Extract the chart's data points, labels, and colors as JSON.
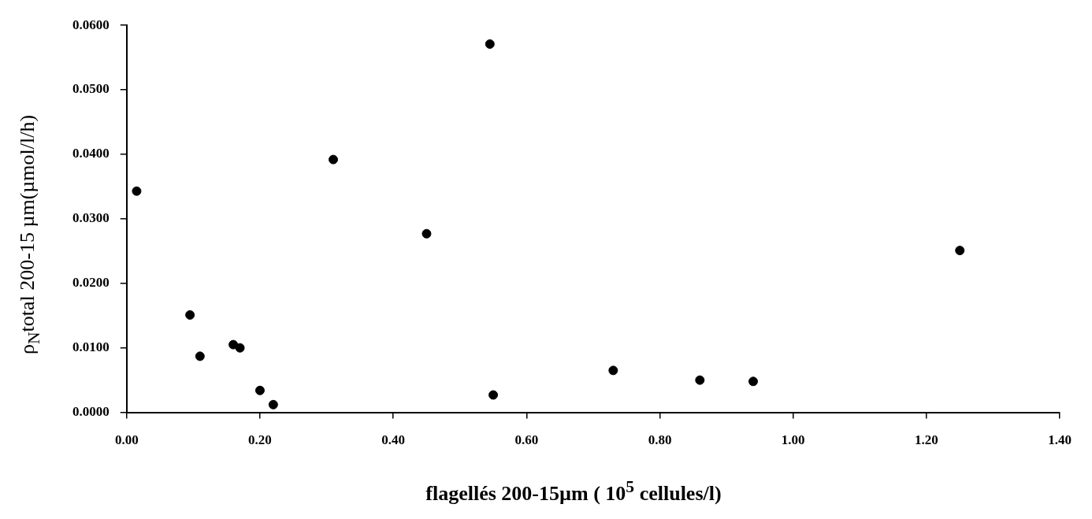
{
  "chart_data": {
    "type": "scatter",
    "xlabel": "flagellés 200-15µm ( 10$^{5}$ cellules/l)",
    "ylabel": "ρ$_{N}$total 200-15 µm(µmol/l/h)",
    "x": [
      0.015,
      0.095,
      0.11,
      0.16,
      0.17,
      0.2,
      0.22,
      0.31,
      0.45,
      0.545,
      0.55,
      0.73,
      0.86,
      0.94,
      1.25
    ],
    "series": [
      {
        "color": "#000000",
        "values": [
          0.0343,
          0.0151,
          0.0087,
          0.0105,
          0.01,
          0.0034,
          0.0012,
          0.0392,
          0.0277,
          0.0571,
          0.0027,
          0.0065,
          0.005,
          0.0048,
          0.0251
        ]
      }
    ],
    "xlim": [
      0,
      1.4
    ],
    "xticks": [
      {
        "value": 0,
        "label": "0.00"
      },
      {
        "value": 0.2,
        "label": "0.20"
      },
      {
        "value": 0.4,
        "label": "0.40"
      },
      {
        "value": 0.6,
        "label": "0.60"
      },
      {
        "value": 0.8,
        "label": "0.80"
      },
      {
        "value": 1,
        "label": "1.00"
      },
      {
        "value": 1.2,
        "label": "1.20"
      },
      {
        "value": 1.4,
        "label": "1.40"
      }
    ],
    "ylim": [
      0,
      0.06
    ],
    "yticks": [
      {
        "value": 0,
        "label": "0.0000"
      },
      {
        "value": 0.01,
        "label": "0.0100"
      },
      {
        "value": 0.02,
        "label": "0.0200"
      },
      {
        "value": 0.03,
        "label": "0.0300"
      },
      {
        "value": 0.04,
        "label": "0.0400"
      },
      {
        "value": 0.05,
        "label": "0.0500"
      },
      {
        "value": 0.06,
        "label": "0.0600"
      }
    ],
    "grid": false,
    "legend": false,
    "marker": "circle"
  }
}
